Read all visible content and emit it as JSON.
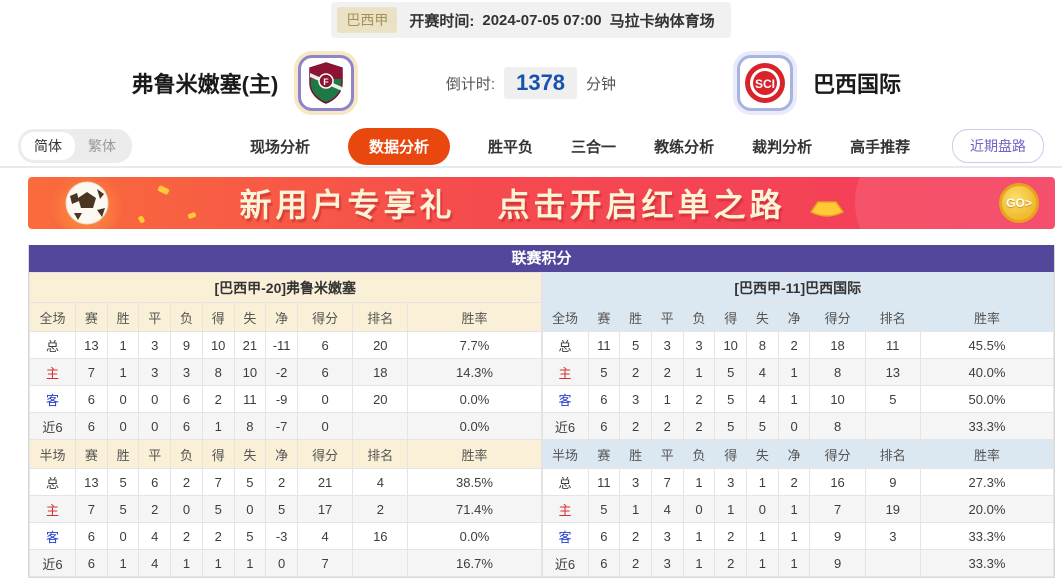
{
  "colors": {
    "accent_orange": "#e8470e",
    "table_header_purple": "#51489c",
    "home_panel_cream": "#faf0d7",
    "away_panel_blue": "#dce8f1",
    "banner_gradient": [
      "#fa6b3c",
      "#f43b5e"
    ],
    "countdown_blue": "#1553ad",
    "home_row_red": "#d43030",
    "away_row_blue": "#2340cf"
  },
  "match_header": {
    "league": "巴西甲",
    "kickoff_label": "开赛时间:",
    "kickoff_time": "2024-07-05 07:00",
    "venue": "马拉卡纳体育场",
    "home_team": "弗鲁米嫩塞(主)",
    "away_team": "巴西国际",
    "countdown_label": "倒计时:",
    "countdown_value": "1378",
    "countdown_unit": "分钟",
    "icons": {
      "home_logo": "fluminense-crest",
      "away_logo": "internacional-crest"
    }
  },
  "nav": {
    "lang": [
      "简体",
      "繁体"
    ],
    "tabs": [
      {
        "label": "现场分析",
        "active": false
      },
      {
        "label": "数据分析",
        "active": true
      },
      {
        "label": "胜平负",
        "active": false
      },
      {
        "label": "三合一",
        "active": false
      },
      {
        "label": "教练分析",
        "active": false
      },
      {
        "label": "裁判分析",
        "active": false
      },
      {
        "label": "高手推荐",
        "active": false
      }
    ],
    "recent_button": "近期盘路"
  },
  "banner": {
    "text1": "新用户专享礼",
    "text2": "点击开启红单之路",
    "go_label": "GO>",
    "icons": [
      "soccer-ball-icon",
      "gold-ingot-icon",
      "go-coin-icon"
    ]
  },
  "league_table": {
    "title": "联赛积分",
    "home": {
      "header": "[巴西甲-20]弗鲁米嫩塞",
      "full": {
        "columns": [
          "全场",
          "赛",
          "胜",
          "平",
          "负",
          "得",
          "失",
          "净",
          "得分",
          "排名",
          "胜率"
        ],
        "rows": [
          {
            "label": "总",
            "values": [
              "13",
              "1",
              "3",
              "9",
              "10",
              "21",
              "-11",
              "6",
              "20",
              "7.7%"
            ]
          },
          {
            "label": "主",
            "values": [
              "7",
              "1",
              "3",
              "3",
              "8",
              "10",
              "-2",
              "6",
              "18",
              "14.3%"
            ]
          },
          {
            "label": "客",
            "values": [
              "6",
              "0",
              "0",
              "6",
              "2",
              "11",
              "-9",
              "0",
              "20",
              "0.0%"
            ]
          },
          {
            "label": "近6",
            "values": [
              "6",
              "0",
              "0",
              "6",
              "1",
              "8",
              "-7",
              "0",
              "",
              "0.0%"
            ]
          }
        ]
      },
      "half": {
        "columns": [
          "半场",
          "赛",
          "胜",
          "平",
          "负",
          "得",
          "失",
          "净",
          "得分",
          "排名",
          "胜率"
        ],
        "rows": [
          {
            "label": "总",
            "values": [
              "13",
              "5",
              "6",
              "2",
              "7",
              "5",
              "2",
              "21",
              "4",
              "38.5%"
            ]
          },
          {
            "label": "主",
            "values": [
              "7",
              "5",
              "2",
              "0",
              "5",
              "0",
              "5",
              "17",
              "2",
              "71.4%"
            ]
          },
          {
            "label": "客",
            "values": [
              "6",
              "0",
              "4",
              "2",
              "2",
              "5",
              "-3",
              "4",
              "16",
              "0.0%"
            ]
          },
          {
            "label": "近6",
            "values": [
              "6",
              "1",
              "4",
              "1",
              "1",
              "1",
              "0",
              "7",
              "",
              "16.7%"
            ]
          }
        ]
      }
    },
    "away": {
      "header": "[巴西甲-11]巴西国际",
      "full": {
        "columns": [
          "全场",
          "赛",
          "胜",
          "平",
          "负",
          "得",
          "失",
          "净",
          "得分",
          "排名",
          "胜率"
        ],
        "rows": [
          {
            "label": "总",
            "values": [
              "11",
              "5",
              "3",
              "3",
              "10",
              "8",
              "2",
              "18",
              "11",
              "45.5%"
            ]
          },
          {
            "label": "主",
            "values": [
              "5",
              "2",
              "2",
              "1",
              "5",
              "4",
              "1",
              "8",
              "13",
              "40.0%"
            ]
          },
          {
            "label": "客",
            "values": [
              "6",
              "3",
              "1",
              "2",
              "5",
              "4",
              "1",
              "10",
              "5",
              "50.0%"
            ]
          },
          {
            "label": "近6",
            "values": [
              "6",
              "2",
              "2",
              "2",
              "5",
              "5",
              "0",
              "8",
              "",
              "33.3%"
            ]
          }
        ]
      },
      "half": {
        "columns": [
          "半场",
          "赛",
          "胜",
          "平",
          "负",
          "得",
          "失",
          "净",
          "得分",
          "排名",
          "胜率"
        ],
        "rows": [
          {
            "label": "总",
            "values": [
              "11",
              "3",
              "7",
              "1",
              "3",
              "1",
              "2",
              "16",
              "9",
              "27.3%"
            ]
          },
          {
            "label": "主",
            "values": [
              "5",
              "1",
              "4",
              "0",
              "1",
              "0",
              "1",
              "7",
              "19",
              "20.0%"
            ]
          },
          {
            "label": "客",
            "values": [
              "6",
              "2",
              "3",
              "1",
              "2",
              "1",
              "1",
              "9",
              "3",
              "33.3%"
            ]
          },
          {
            "label": "近6",
            "values": [
              "6",
              "2",
              "3",
              "1",
              "2",
              "1",
              "1",
              "9",
              "",
              "33.3%"
            ]
          }
        ]
      }
    }
  }
}
